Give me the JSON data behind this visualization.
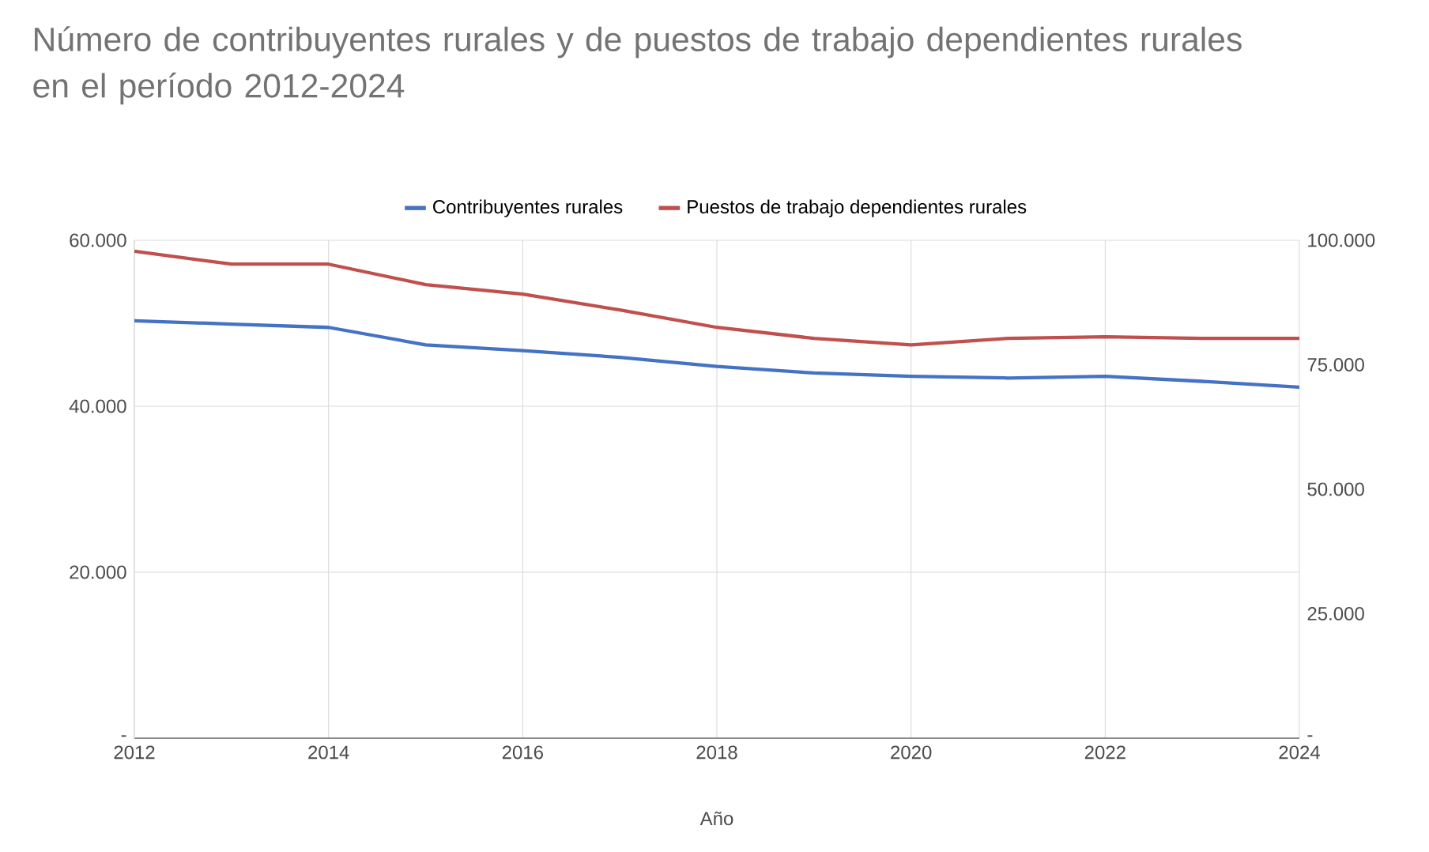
{
  "chart_data": {
    "type": "line",
    "title": "Número de contribuyentes rurales y de puestos de trabajo dependientes rurales en el período 2012-2024",
    "xlabel": "Año",
    "x": [
      2012,
      2013,
      2014,
      2015,
      2016,
      2017,
      2018,
      2019,
      2020,
      2021,
      2022,
      2023,
      2024
    ],
    "series": [
      {
        "name": "Contribuyentes rurales",
        "color": "#4472c4",
        "values": [
          50300,
          49900,
          49500,
          47400,
          46700,
          45900,
          44800,
          44000,
          43600,
          43400,
          43600,
          43000,
          42300
        ]
      },
      {
        "name": "Puestos de trabajo dependientes rurales",
        "color": "#c0504d",
        "axis": "y2",
        "values": [
          97800,
          95200,
          95200,
          91100,
          89200,
          86000,
          82500,
          80300,
          79000,
          80300,
          80600,
          80300,
          80300
        ]
      }
    ],
    "xlim": [
      2012,
      2024
    ],
    "xticks": [
      2012,
      2014,
      2016,
      2018,
      2020,
      2022,
      2024
    ],
    "ylim": [
      0,
      60000
    ],
    "yticks": [
      {
        "value": 0,
        "label": "-"
      },
      {
        "value": 20000,
        "label": "20.000"
      },
      {
        "value": 40000,
        "label": "40.000"
      },
      {
        "value": 60000,
        "label": "60.000"
      }
    ],
    "y2lim": [
      0,
      100000
    ],
    "y2ticks": [
      {
        "value": 0,
        "label": "-"
      },
      {
        "value": 25000,
        "label": "25.000"
      },
      {
        "value": 50000,
        "label": "50.000"
      },
      {
        "value": 75000,
        "label": "75.000"
      },
      {
        "value": 100000,
        "label": "100.000"
      }
    ],
    "grid": true,
    "legend": "top",
    "marker": "none",
    "line_style": "solid"
  }
}
